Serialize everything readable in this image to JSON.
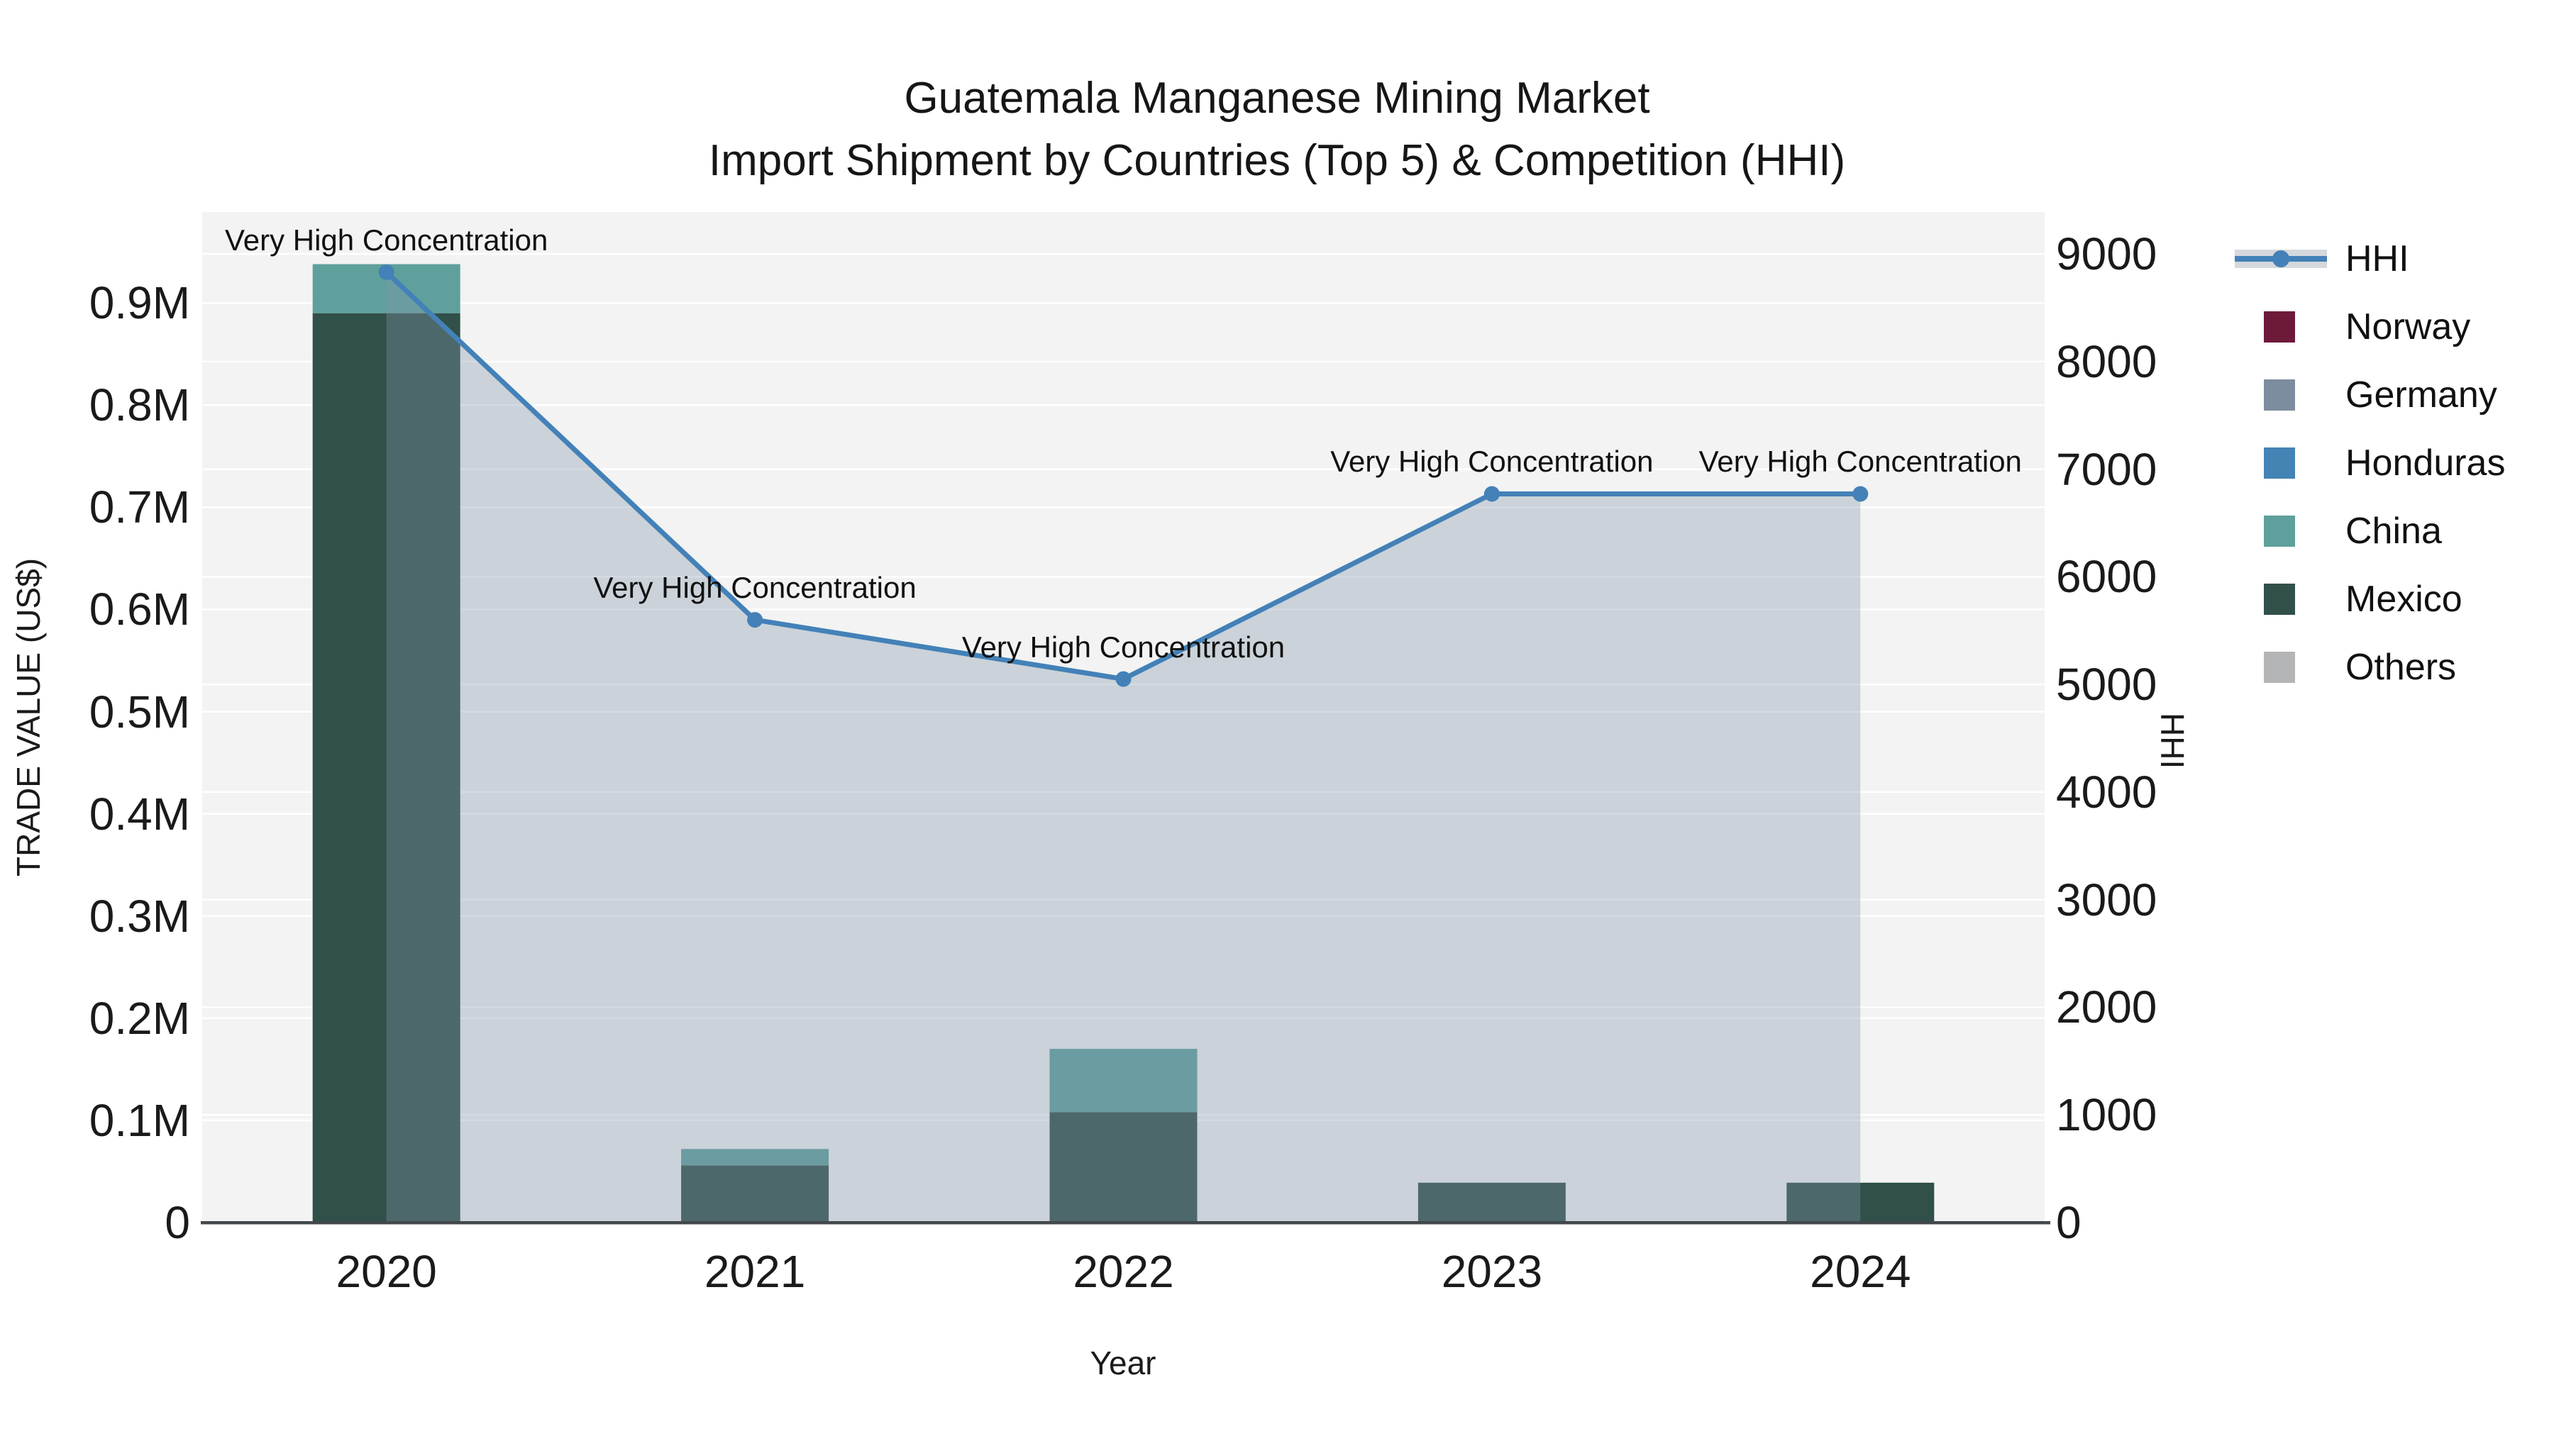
{
  "title": {
    "line1": "Guatemala Manganese Mining Market",
    "line2": "Import Shipment by Countries (Top 5) & Competition (HHI)"
  },
  "axes": {
    "x_title": "Year",
    "y_left_title": "TRADE VALUE (US$)",
    "y_right_title": "HHI",
    "y_left_ticks": [
      {
        "v": 0,
        "label": "0"
      },
      {
        "v": 100000,
        "label": "0.1M"
      },
      {
        "v": 200000,
        "label": "0.2M"
      },
      {
        "v": 300000,
        "label": "0.3M"
      },
      {
        "v": 400000,
        "label": "0.4M"
      },
      {
        "v": 500000,
        "label": "0.5M"
      },
      {
        "v": 600000,
        "label": "0.6M"
      },
      {
        "v": 700000,
        "label": "0.7M"
      },
      {
        "v": 800000,
        "label": "0.8M"
      },
      {
        "v": 900000,
        "label": "0.9M"
      }
    ],
    "y_right_ticks": [
      {
        "v": 0,
        "label": "0"
      },
      {
        "v": 1000,
        "label": "1000"
      },
      {
        "v": 2000,
        "label": "2000"
      },
      {
        "v": 3000,
        "label": "3000"
      },
      {
        "v": 4000,
        "label": "4000"
      },
      {
        "v": 5000,
        "label": "5000"
      },
      {
        "v": 6000,
        "label": "6000"
      },
      {
        "v": 7000,
        "label": "7000"
      },
      {
        "v": 8000,
        "label": "8000"
      },
      {
        "v": 9000,
        "label": "9000"
      }
    ]
  },
  "chart_data": {
    "type": "bar+line",
    "title": "Guatemala Manganese Mining Market — Import Shipment by Countries (Top 5) & Competition (HHI)",
    "xlabel": "Year",
    "ylabel": "TRADE VALUE (US$)",
    "ylabel2": "HHI",
    "categories": [
      "2020",
      "2021",
      "2022",
      "2023",
      "2024"
    ],
    "y_left_range": [
      0,
      989000
    ],
    "y_right_range": [
      0,
      9389
    ],
    "grid": true,
    "legend_position": "right",
    "bar_stack_order": [
      "Mexico",
      "China",
      "Honduras",
      "Germany",
      "Norway",
      "Others"
    ],
    "series": [
      {
        "name": "Norway",
        "type": "bar",
        "color": "#6D1A3A",
        "values": [
          0,
          0,
          0,
          0,
          0
        ]
      },
      {
        "name": "Germany",
        "type": "bar",
        "color": "#7D8DA0",
        "values": [
          0,
          0,
          0,
          0,
          0
        ]
      },
      {
        "name": "Honduras",
        "type": "bar",
        "color": "#4484B4",
        "values": [
          0,
          0,
          0,
          0,
          0
        ]
      },
      {
        "name": "China",
        "type": "bar",
        "color": "#5FA09C",
        "values": [
          48000,
          16000,
          62000,
          0,
          0
        ]
      },
      {
        "name": "Mexico",
        "type": "bar",
        "color": "#305049",
        "values": [
          890000,
          56000,
          108000,
          39000,
          39000
        ]
      },
      {
        "name": "Others",
        "type": "bar",
        "color": "#B3B5B7",
        "values": [
          0,
          0,
          0,
          0,
          0
        ]
      }
    ],
    "hhi_line": {
      "name": "HHI",
      "type": "line",
      "color": "#4381B8",
      "area_fill": "rgba(131,148,173,0.35)",
      "values": [
        8830,
        5600,
        5050,
        6770,
        6770
      ]
    },
    "annotations": [
      {
        "text": "Very High Concentration",
        "year": "2020",
        "hhi": 8830
      },
      {
        "text": "Very High Concentration",
        "year": "2021",
        "hhi": 5600
      },
      {
        "text": "Very High Concentration",
        "year": "2022",
        "hhi": 5050
      },
      {
        "text": "Very High Concentration",
        "year": "2023",
        "hhi": 6770
      },
      {
        "text": "Very High Concentration",
        "year": "2024",
        "hhi": 6770
      }
    ]
  },
  "legend": {
    "items": [
      {
        "label": "HHI",
        "type": "line",
        "color": "#4381B8",
        "band": "#D5D8DC"
      },
      {
        "label": "Norway",
        "type": "swatch",
        "color": "#6D1A3A"
      },
      {
        "label": "Germany",
        "type": "swatch",
        "color": "#7D8DA0"
      },
      {
        "label": "Honduras",
        "type": "swatch",
        "color": "#4484B4"
      },
      {
        "label": "China",
        "type": "swatch",
        "color": "#5FA09C"
      },
      {
        "label": "Mexico",
        "type": "swatch",
        "color": "#305049"
      },
      {
        "label": "Others",
        "type": "swatch",
        "color": "#B3B5B7"
      }
    ]
  },
  "colors": {
    "plot_background": "#F2F3F2",
    "gridline": "#FFFFFF",
    "axis_line": "#42474C",
    "hhi_line": "#4381B8"
  }
}
